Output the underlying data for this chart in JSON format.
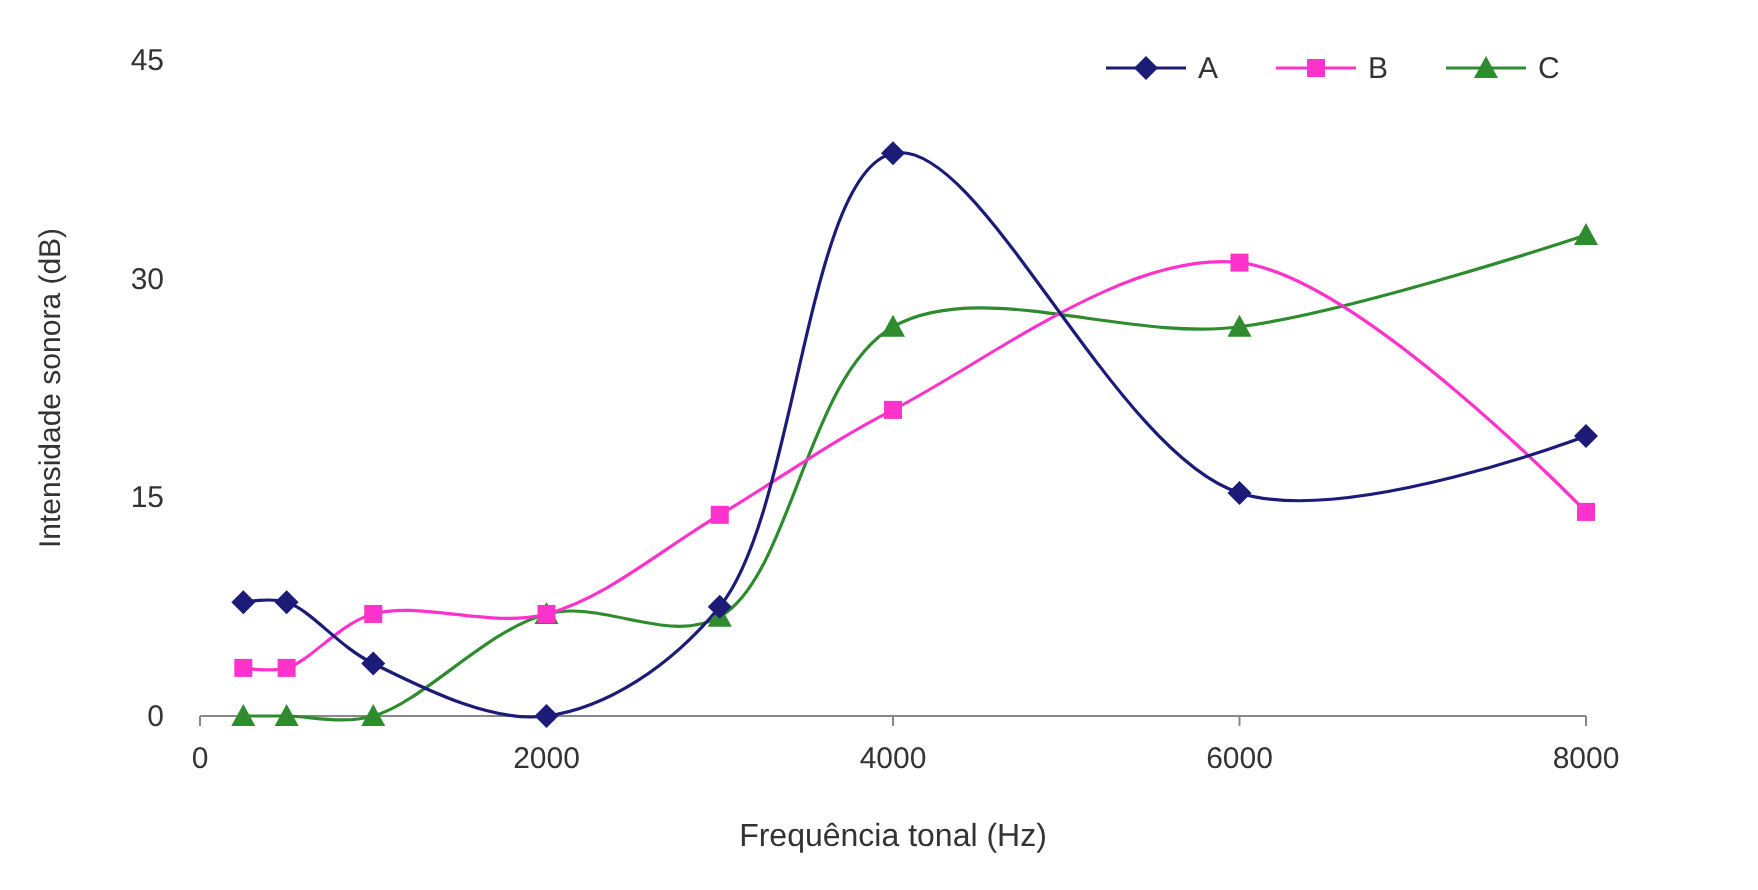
{
  "chart_data": {
    "type": "line",
    "xlabel": "Frequência tonal (Hz)",
    "ylabel": "Intensidade sonora (dB)",
    "x": [
      250,
      500,
      1000,
      2000,
      3000,
      4000,
      6000,
      8000
    ],
    "xlim": [
      0,
      8000
    ],
    "xticks": [
      0,
      2000,
      4000,
      6000,
      8000
    ],
    "ylim": [
      0,
      45
    ],
    "yticks": [
      0,
      15,
      30,
      45
    ],
    "grid": false,
    "legend": "top right",
    "series": [
      {
        "name": "A",
        "color": "#1c1c78",
        "marker": "diamond",
        "values": [
          7.8,
          7.8,
          3.6,
          0,
          7.5,
          38.6,
          15.3,
          19.2
        ]
      },
      {
        "name": "B",
        "color": "#ff33cc",
        "marker": "square",
        "values": [
          3.3,
          3.3,
          7,
          7,
          13.8,
          21,
          31.1,
          14
        ]
      },
      {
        "name": "C",
        "color": "#2e8b2e",
        "marker": "triangle",
        "values": [
          0,
          0,
          0,
          7,
          6.8,
          26.7,
          26.7,
          33
        ]
      }
    ]
  }
}
